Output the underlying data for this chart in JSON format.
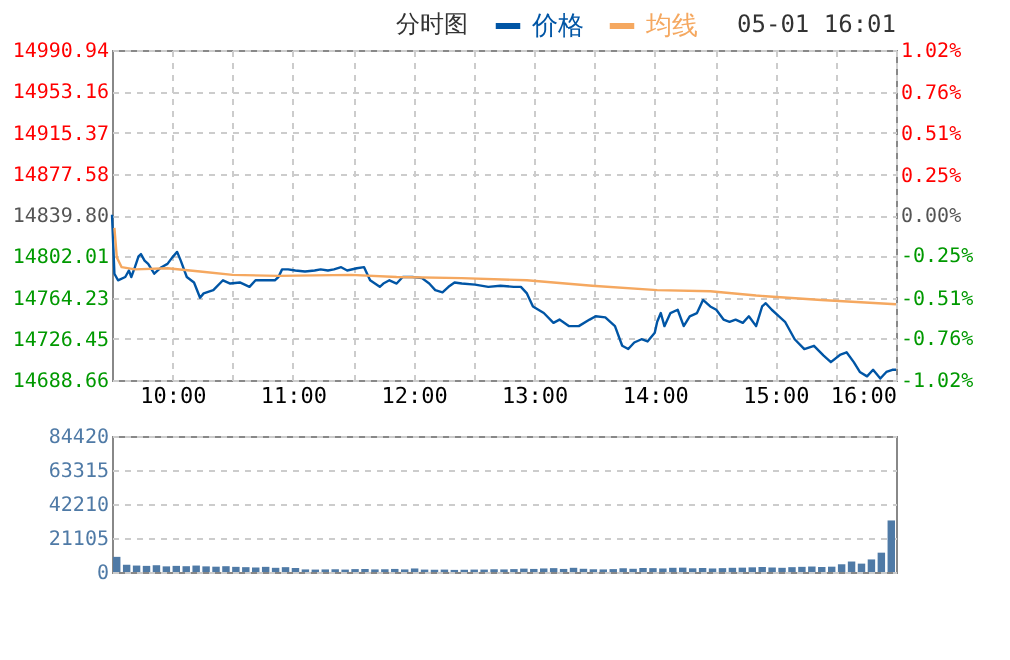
{
  "chart_data": [
    {
      "type": "line",
      "title": "分时图",
      "annotations": [
        "05-01 16:01"
      ],
      "legend": "top",
      "grid": true,
      "xlim": [
        9.5,
        16
      ],
      "xticks": [
        {
          "value": 10,
          "label": "10:00"
        },
        {
          "value": 10.5,
          "label": null
        },
        {
          "value": 11,
          "label": "11:00"
        },
        {
          "value": 11.5,
          "label": null
        },
        {
          "value": 12,
          "label": "12:00"
        },
        {
          "value": 12.5,
          "label": null
        },
        {
          "value": 13,
          "label": "13:00"
        },
        {
          "value": 13.5,
          "label": null
        },
        {
          "value": 14,
          "label": "14:00"
        },
        {
          "value": 14.5,
          "label": null
        },
        {
          "value": 15,
          "label": "15:00"
        },
        {
          "value": 15.5,
          "label": null
        },
        {
          "value": 16,
          "label": "16:00"
        }
      ],
      "ylim": [
        14688.66,
        14990.94
      ],
      "yticks": [
        14688.66,
        14726.45,
        14764.23,
        14802.01,
        {
          "value": 14839.8,
          "label": "14839.80"
        },
        14877.58,
        14915.37,
        14953.16,
        14990.94
      ],
      "y2lim": [
        -1.02,
        1.02
      ],
      "y2ticks": [
        {
          "value": -1.02,
          "label": "-1.02%"
        },
        {
          "value": -0.76,
          "label": "-0.76%"
        },
        {
          "value": -0.51,
          "label": "-0.51%"
        },
        {
          "value": -0.25,
          "label": "-0.25%"
        },
        {
          "value": 0,
          "label": "0.00%"
        },
        {
          "value": 0.25,
          "label": "0.25%"
        },
        {
          "value": 0.51,
          "label": "0.51%"
        },
        {
          "value": 0.76,
          "label": "0.76%"
        },
        {
          "value": 1.02,
          "label": "1.02%"
        }
      ],
      "series": [
        {
          "name": "价格",
          "color": "#0055a5",
          "x": [
            9.5,
            9.52,
            9.55,
            9.61,
            9.64,
            9.66,
            9.69,
            9.72,
            9.74,
            9.77,
            9.8,
            9.85,
            9.91,
            9.96,
            10.0,
            10.04,
            10.07,
            10.12,
            10.18,
            10.23,
            10.26,
            10.34,
            10.42,
            10.48,
            10.56,
            10.64,
            10.69,
            10.77,
            10.85,
            10.88,
            10.91,
            10.96,
            11.02,
            11.1,
            11.18,
            11.23,
            11.29,
            11.34,
            11.4,
            11.45,
            11.53,
            11.59,
            11.64,
            11.72,
            11.75,
            11.8,
            11.86,
            11.91,
            11.99,
            12.07,
            12.13,
            12.18,
            12.24,
            12.29,
            12.34,
            12.4,
            12.51,
            12.62,
            12.72,
            12.83,
            12.89,
            12.94,
            12.99,
            13.08,
            13.16,
            13.21,
            13.29,
            13.37,
            13.46,
            13.51,
            13.59,
            13.67,
            13.73,
            13.78,
            13.83,
            13.89,
            13.94,
            14.0,
            14.02,
            14.05,
            14.08,
            14.13,
            14.19,
            14.24,
            14.29,
            14.35,
            14.4,
            14.46,
            14.51,
            14.57,
            14.62,
            14.67,
            14.73,
            14.78,
            14.84,
            14.89,
            14.92,
            14.97,
            15.03,
            15.08,
            15.16,
            15.24,
            15.32,
            15.4,
            15.46,
            15.54,
            15.59,
            15.65,
            15.7,
            15.76,
            15.81,
            15.87,
            15.92,
            15.97,
            16.0
          ],
          "values": [
            14840,
            14786,
            14780,
            14783,
            14789,
            14783,
            14792,
            14802,
            14804,
            14798,
            14795,
            14786,
            14792,
            14795,
            14801,
            14806,
            14798,
            14783,
            14778,
            14764,
            14768,
            14771,
            14780,
            14777,
            14778,
            14774,
            14780,
            14780,
            14780,
            14783,
            14790,
            14790,
            14789,
            14788,
            14789,
            14790,
            14789,
            14790,
            14792,
            14789,
            14791,
            14792,
            14780,
            14774,
            14777,
            14780,
            14777,
            14783,
            14783,
            14782,
            14777,
            14771,
            14769,
            14774,
            14778,
            14777,
            14776,
            14774,
            14775,
            14774,
            14774,
            14768,
            14756,
            14750,
            14741,
            14744,
            14738,
            14738,
            14744,
            14747,
            14746,
            14738,
            14720,
            14717,
            14723,
            14726,
            14724,
            14732,
            14742,
            14750,
            14738,
            14750,
            14753,
            14738,
            14747,
            14750,
            14762,
            14756,
            14753,
            14744,
            14742,
            14744,
            14741,
            14747,
            14738,
            14756,
            14759,
            14753,
            14747,
            14742,
            14726,
            14717,
            14720,
            14711,
            14705,
            14712,
            14714,
            14705,
            14696,
            14692,
            14698,
            14690,
            14696,
            14698,
            14698
          ]
        },
        {
          "name": "均线",
          "color": "#f5a860",
          "x": [
            9.52,
            9.54,
            9.58,
            9.69,
            9.96,
            10.23,
            10.5,
            10.88,
            11.48,
            11.86,
            12.4,
            12.94,
            13.48,
            14.02,
            14.46,
            14.84,
            15.38,
            16.0
          ],
          "values": [
            14828,
            14801,
            14792,
            14790,
            14791,
            14788,
            14785,
            14784,
            14785,
            14783,
            14782,
            14780,
            14775,
            14771,
            14770,
            14766,
            14762,
            14758
          ]
        }
      ]
    },
    {
      "type": "bar",
      "color": "#4f7aa6",
      "grid": "y",
      "tick_labels": "y",
      "ylim": [
        0,
        84420
      ],
      "yticks": [
        0,
        21105,
        42210,
        63315,
        84420
      ],
      "categories": [
        null,
        null,
        null,
        null,
        null,
        null,
        null,
        null,
        null,
        null,
        null,
        null,
        null,
        null,
        null,
        null,
        null,
        null,
        null,
        null,
        null,
        null,
        null,
        null,
        null,
        null,
        null,
        null,
        null,
        null,
        null,
        null,
        null,
        null,
        null,
        null,
        null,
        null,
        null,
        null,
        null,
        null,
        null,
        null,
        null,
        null,
        null,
        null,
        null,
        null,
        null,
        null,
        null,
        null,
        null,
        null,
        null,
        null,
        null,
        null,
        null,
        null,
        null,
        null,
        null,
        null,
        null,
        null,
        null,
        null,
        null,
        null,
        null,
        null,
        null,
        null,
        null,
        null,
        null
      ],
      "values": [
        9400,
        4500,
        4000,
        3800,
        4200,
        3500,
        3800,
        3600,
        4000,
        3500,
        3300,
        3600,
        3200,
        3000,
        2800,
        3200,
        2600,
        3000,
        2500,
        1600,
        1500,
        1600,
        1700,
        1500,
        1800,
        1800,
        1600,
        1700,
        1900,
        1600,
        2200,
        1500,
        1400,
        1500,
        1300,
        1400,
        1500,
        1500,
        1700,
        1600,
        1800,
        2100,
        1900,
        2200,
        2400,
        1900,
        2600,
        2000,
        1700,
        1600,
        1800,
        2300,
        2000,
        2500,
        2400,
        2200,
        2600,
        2700,
        2300,
        2500,
        2200,
        2400,
        2600,
        2700,
        2900,
        3100,
        2800,
        2600,
        3000,
        3200,
        3400,
        3100,
        3300,
        4800,
        6500,
        5200,
        7800,
        12000,
        32000
      ]
    }
  ]
}
